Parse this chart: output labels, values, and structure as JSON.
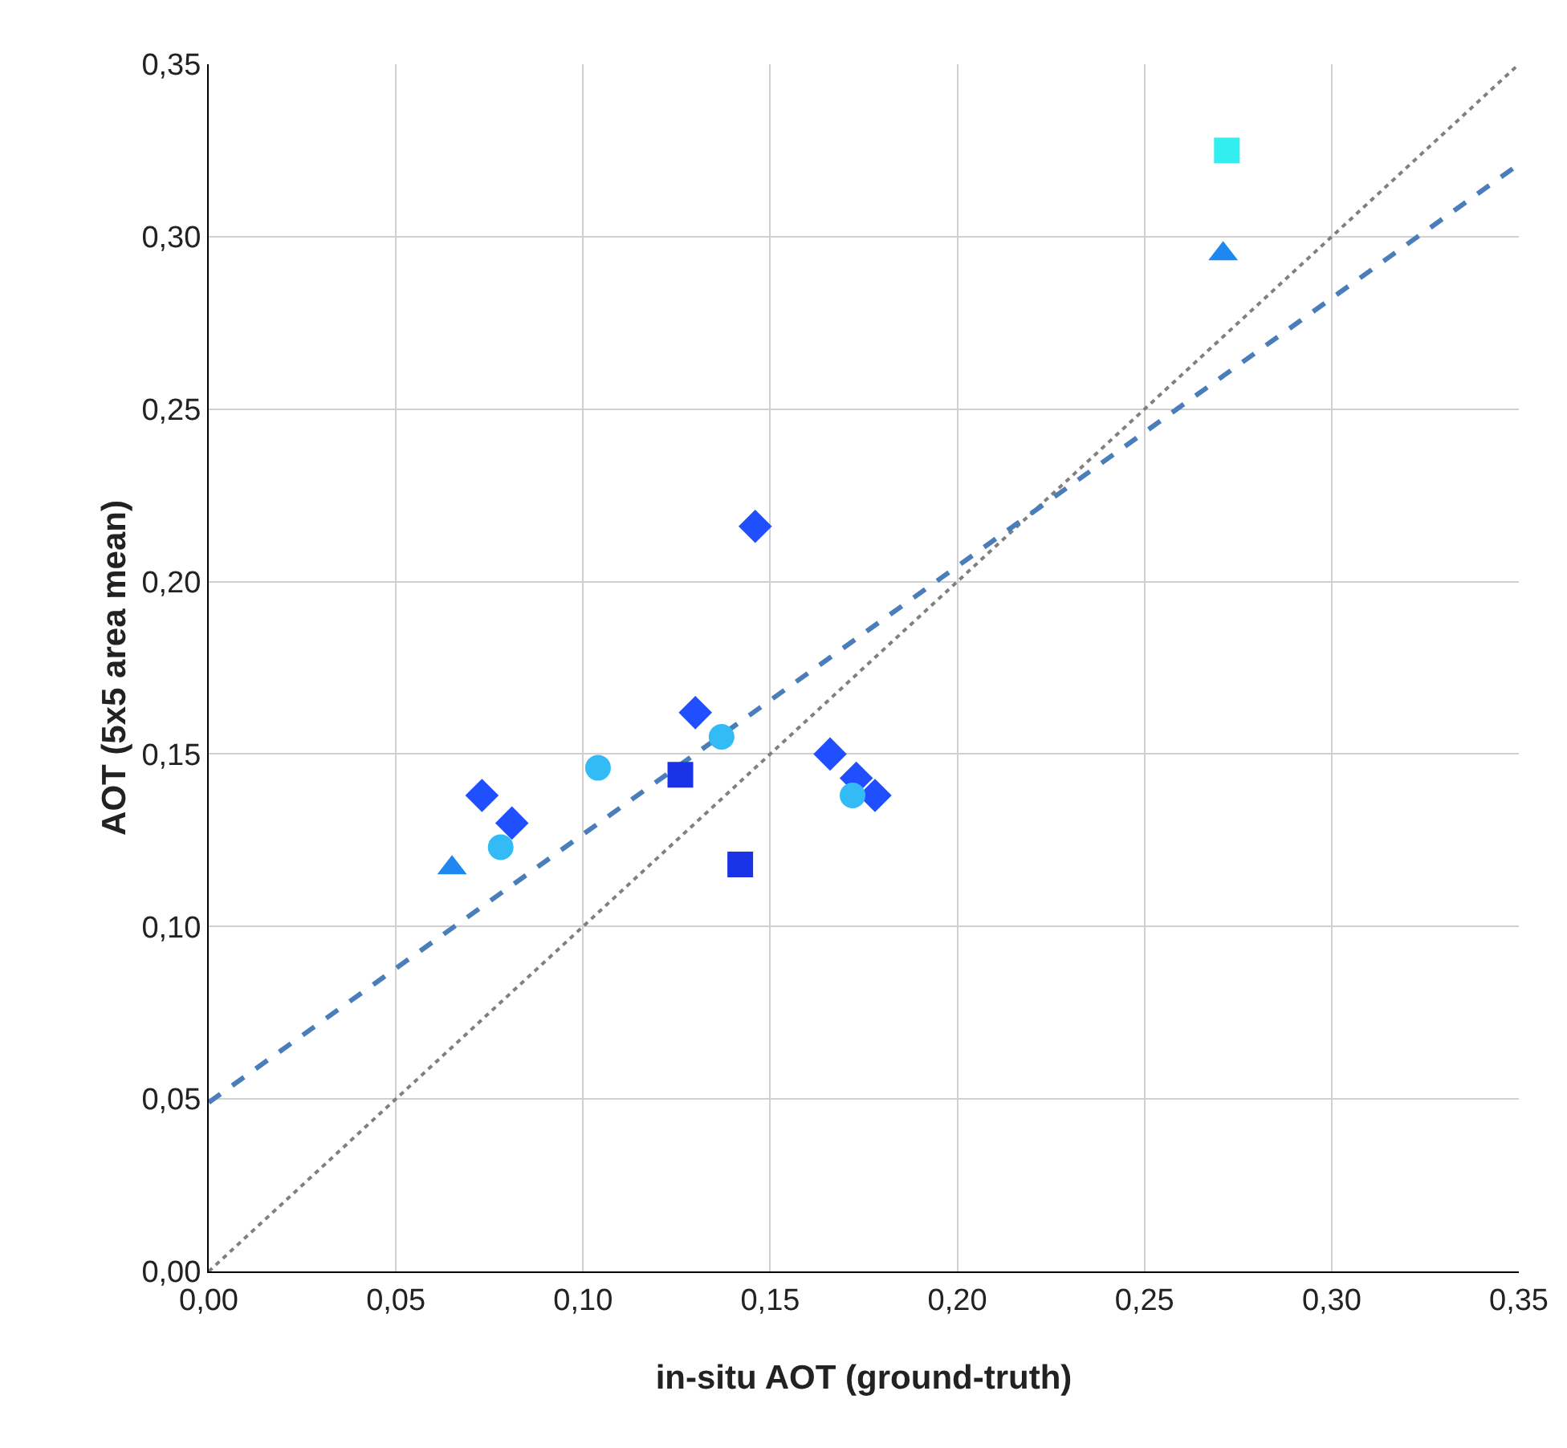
{
  "chart_data": {
    "type": "scatter",
    "xlabel": "in-situ AOT (ground-truth)",
    "ylabel": "AOT (5x5 area mean)",
    "grid": true,
    "xlim": [
      0,
      0.35
    ],
    "ylim": [
      0,
      0.35
    ],
    "xticks": [
      {
        "value": 0,
        "label": "0,00"
      },
      {
        "value": 0.05,
        "label": "0,05"
      },
      {
        "value": 0.1,
        "label": "0,10"
      },
      {
        "value": 0.15,
        "label": "0,15"
      },
      {
        "value": 0.2,
        "label": "0,20"
      },
      {
        "value": 0.25,
        "label": "0,25"
      },
      {
        "value": 0.3,
        "label": "0,30"
      },
      {
        "value": 0.35,
        "label": "0,35"
      }
    ],
    "yticks": [
      {
        "value": 0,
        "label": "0,00"
      },
      {
        "value": 0.05,
        "label": "0,05"
      },
      {
        "value": 0.1,
        "label": "0,10"
      },
      {
        "value": 0.15,
        "label": "0,15"
      },
      {
        "value": 0.2,
        "label": "0,20"
      },
      {
        "value": 0.25,
        "label": "0,25"
      },
      {
        "value": 0.3,
        "label": "0,30"
      },
      {
        "value": 0.35,
        "label": "0,35"
      }
    ],
    "series": [
      {
        "type": "line",
        "line_style": "dotted",
        "marker": "none",
        "color": "#808080",
        "x": [
          0,
          0.35
        ],
        "values": [
          0,
          0.35
        ]
      },
      {
        "type": "line",
        "line_style": "dashed",
        "marker": "none",
        "color": "#4a7ebb",
        "x": [
          0,
          0.35
        ],
        "values": [
          0.049,
          0.321
        ]
      },
      {
        "marker": "square",
        "color": "#1a33e6",
        "x": [
          0.126,
          0.142
        ],
        "values": [
          0.144,
          0.118
        ]
      },
      {
        "marker": "diamond",
        "color": "#1f4fff",
        "x": [
          0.073,
          0.081,
          0.146,
          0.13,
          0.166,
          0.173,
          0.178
        ],
        "values": [
          0.138,
          0.13,
          0.216,
          0.162,
          0.15,
          0.143,
          0.138
        ]
      },
      {
        "marker": "triangle",
        "color": "#1e88f0",
        "x": [
          0.065,
          0.271
        ],
        "values": [
          0.117,
          0.295
        ]
      },
      {
        "marker": "circle",
        "color": "#33bbf5",
        "x": [
          0.078,
          0.104,
          0.137,
          0.172
        ],
        "values": [
          0.123,
          0.146,
          0.155,
          0.138
        ]
      },
      {
        "marker": "square",
        "color": "#33eeee",
        "x": [
          0.272
        ],
        "values": [
          0.325
        ]
      }
    ]
  }
}
